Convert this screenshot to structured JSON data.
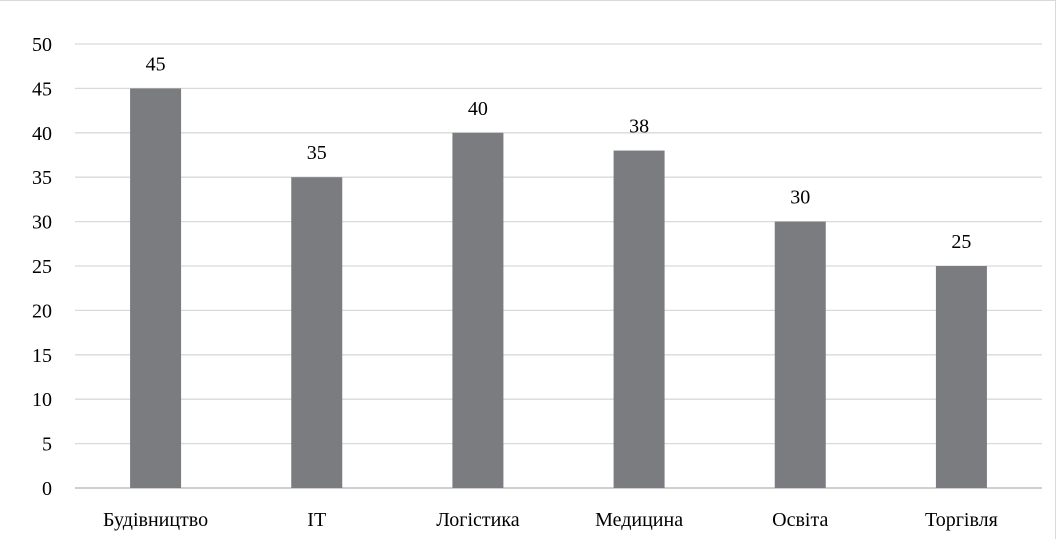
{
  "chart_data": {
    "type": "bar",
    "title": "",
    "xlabel": "",
    "ylabel": "",
    "categories": [
      "Будівництво",
      "IT",
      "Логістика",
      "Медицина",
      "Освіта",
      "Торгівля"
    ],
    "values": [
      45,
      35,
      40,
      38,
      30,
      25
    ],
    "data_labels": [
      "45",
      "35",
      "40",
      "38",
      "30",
      "25"
    ],
    "ylim": [
      0,
      50
    ],
    "yticks": [
      "0",
      "5",
      "10",
      "15",
      "20",
      "25",
      "30",
      "35",
      "40",
      "45",
      "50"
    ],
    "grid": true,
    "legend": "none",
    "colors": {
      "bar": "#7b7c7f",
      "grid": "#d9d9d9",
      "axis": "#bfbfbf",
      "text": "#000000"
    }
  }
}
